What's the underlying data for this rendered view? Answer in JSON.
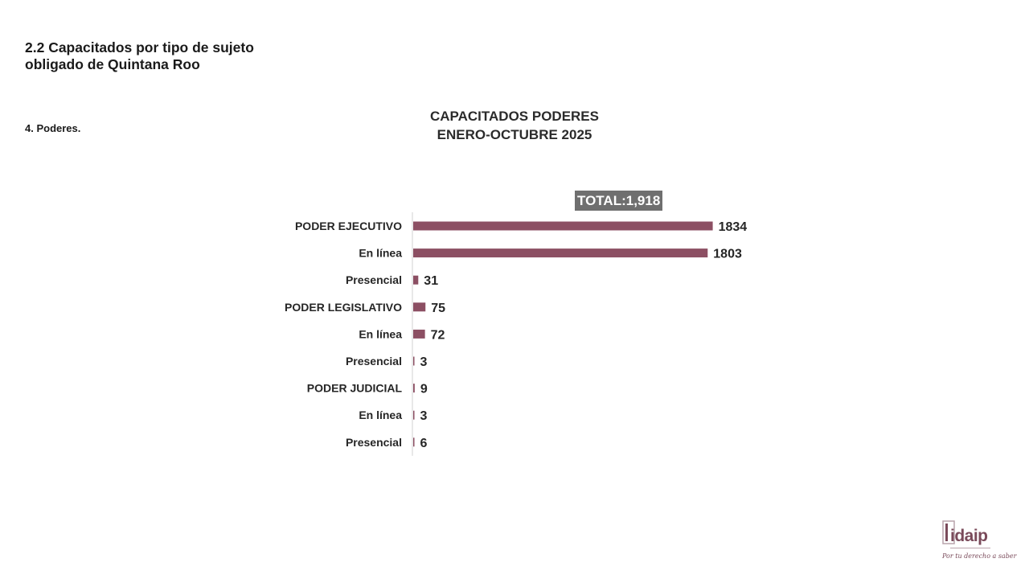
{
  "slide": {
    "section_title": "2.2 Capacitados por tipo de sujeto obligado de Quintana Roo",
    "subsection": "4. Poderes."
  },
  "chart": {
    "title_line1": "CAPACITADOS PODERES",
    "title_line2": "ENERO-OCTUBRE 2025",
    "total_label": "TOTAL:1,918"
  },
  "logo": {
    "wordmark": "idaip",
    "slogan": "Por tu derecho a saber"
  },
  "chart_data": {
    "type": "bar",
    "orientation": "horizontal",
    "title": "CAPACITADOS PODERES ENERO-OCTUBRE 2025",
    "categories": [
      "PODER EJECUTIVO",
      "En línea",
      "Presencial",
      "PODER LEGISLATIVO",
      "En línea",
      "Presencial",
      "PODER JUDICIAL",
      "En línea",
      "Presencial"
    ],
    "values": [
      1834,
      1803,
      31,
      75,
      72,
      3,
      9,
      3,
      6
    ],
    "xlim": [
      0,
      1900
    ],
    "bar_color": "#8c4f63",
    "grid": false,
    "legend": "none"
  }
}
